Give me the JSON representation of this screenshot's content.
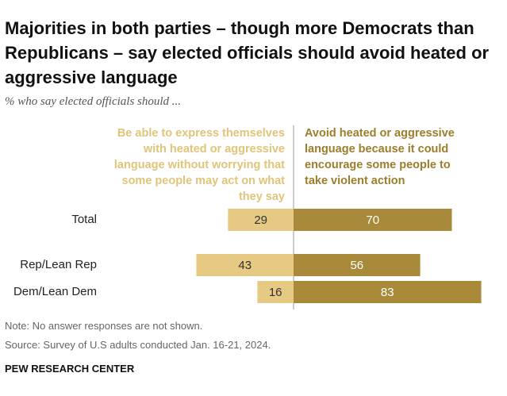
{
  "chart_data": {
    "type": "diverging_bar",
    "title": "Majorities in both parties – though more Democrats than Republicans – say elected officials should avoid heated or aggressive language",
    "subtitle": "% who say elected officials should ...",
    "categories": [
      "Total",
      "Rep/Lean Rep",
      "Dem/Lean Dem"
    ],
    "series": [
      {
        "name": "Be able to express themselves with heated or aggressive language without worrying that some people may act on what they say",
        "color": "#e6c982",
        "values": [
          29,
          43,
          16
        ]
      },
      {
        "name": "Avoid heated or aggressive language because it could encourage some people to take violent action",
        "color": "#a98a3a",
        "values": [
          70,
          56,
          83
        ]
      }
    ],
    "notes": [
      "Note: No answer responses are not shown.",
      "Source: Survey of U.S adults conducted Jan. 16-21, 2024."
    ],
    "source": "PEW RESEARCH CENTER"
  }
}
